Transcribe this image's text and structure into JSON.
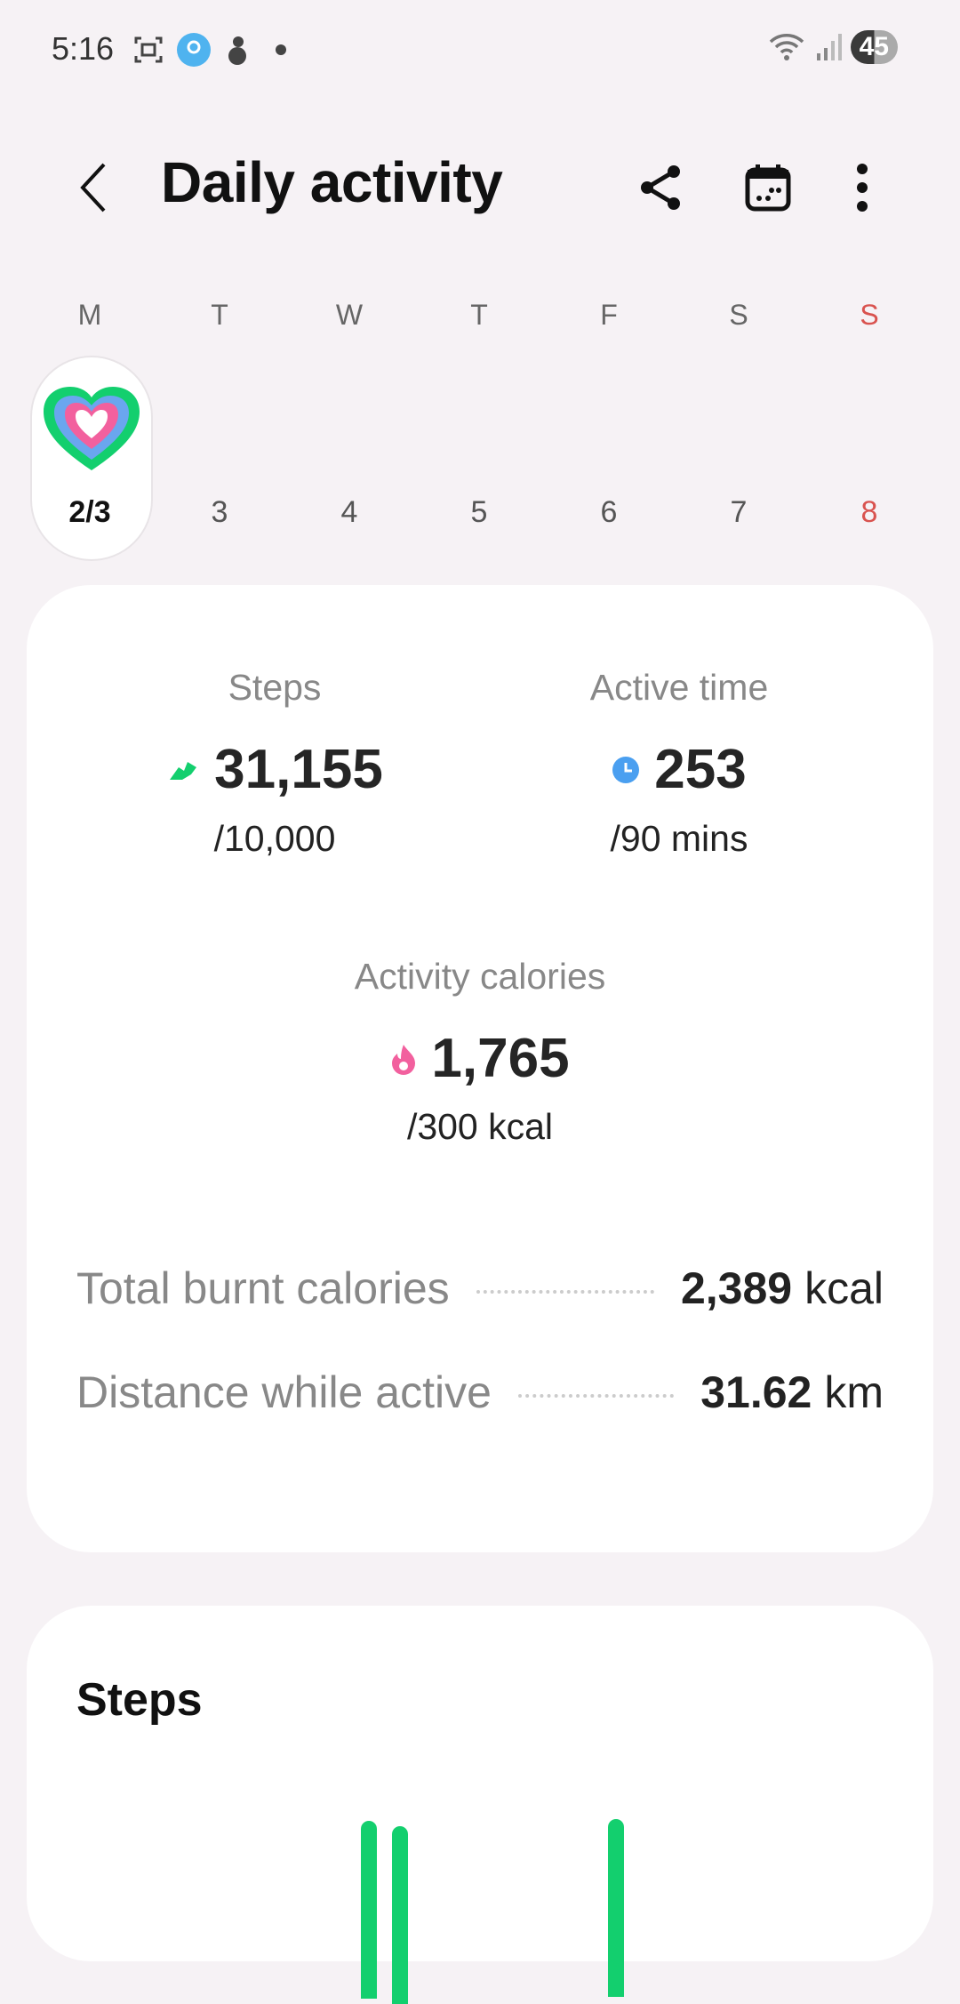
{
  "status_bar": {
    "time": "5:16",
    "battery": "45"
  },
  "header": {
    "title": "Daily activity",
    "icons": [
      "back-icon",
      "share-icon",
      "calendar-icon",
      "more-icon"
    ]
  },
  "week": {
    "days": [
      "M",
      "T",
      "W",
      "T",
      "F",
      "S",
      "S"
    ],
    "dates": [
      "2/3",
      "3",
      "4",
      "5",
      "6",
      "7",
      "8"
    ],
    "selected_index": 0,
    "sunday_color": "#d9534f"
  },
  "summary": {
    "steps": {
      "label": "Steps",
      "value": "31,155",
      "goal": "/10,000",
      "color": "#13cf6e"
    },
    "active_time": {
      "label": "Active time",
      "value": "253",
      "goal": "/90 mins",
      "color": "#4a9ff0"
    },
    "calories": {
      "label": "Activity calories",
      "value": "1,765",
      "goal": "/300 kcal",
      "color": "#f2609e"
    },
    "total_burnt": {
      "label": "Total burnt calories",
      "value": "2,389",
      "unit": "kcal"
    },
    "distance": {
      "label": "Distance while active",
      "value": "31.62",
      "unit": "km"
    }
  },
  "steps_card": {
    "title": "Steps"
  }
}
